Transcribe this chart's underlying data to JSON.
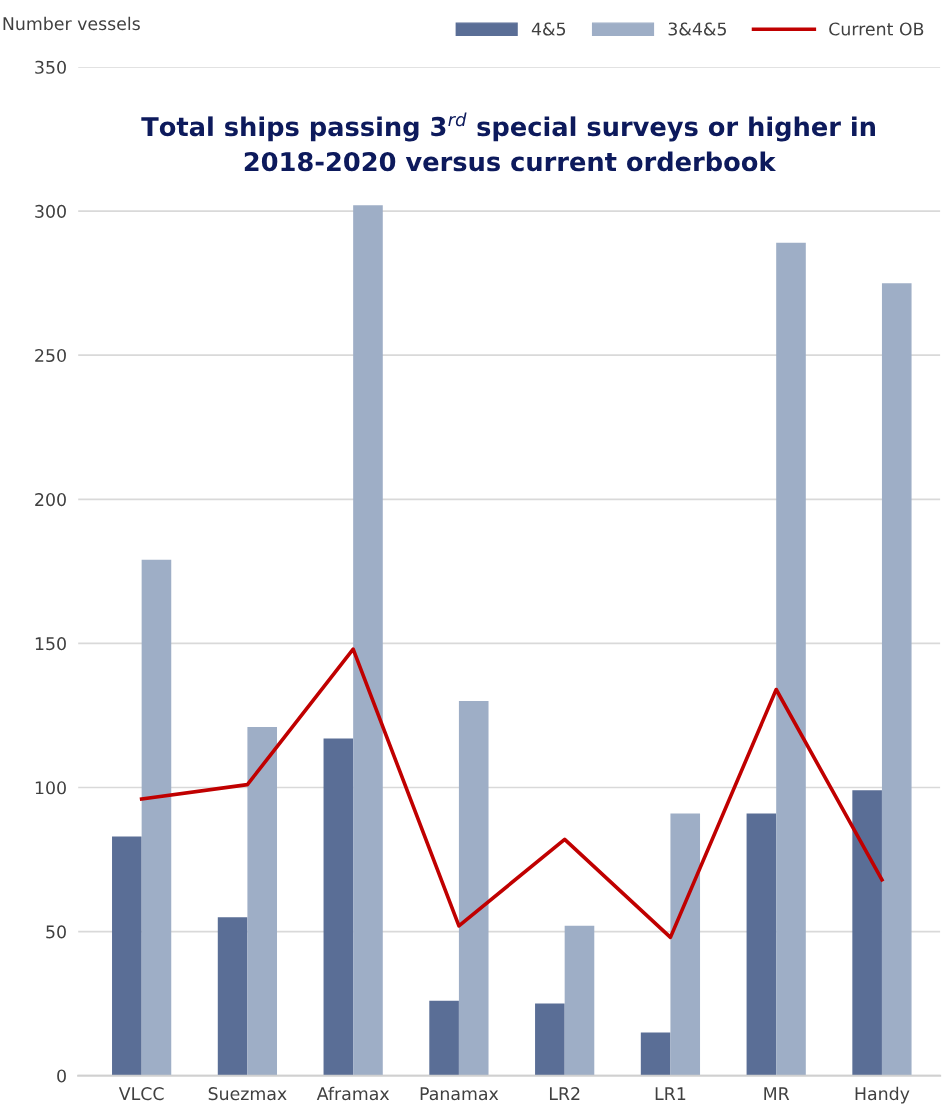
{
  "chart_data": {
    "type": "bar",
    "title": "Total ships passing 3$^{rd}$ special surveys or higher in 2018-2020 versus current orderbook",
    "ylabel": "Number vessels",
    "categories": [
      "VLCC",
      "Suezmax",
      "Aframax",
      "Panamax",
      "LR2",
      "LR1",
      "MR",
      "Handy"
    ],
    "series": [
      {
        "name": "4&5",
        "color": "#5a6e96",
        "values": [
          83,
          55,
          117,
          26,
          25,
          15,
          91,
          99
        ]
      },
      {
        "name": "3&4&5",
        "color": "#9eaec6",
        "values": [
          179,
          121,
          302,
          130,
          52,
          91,
          289,
          275
        ]
      },
      {
        "name": "Current OB",
        "type": "line",
        "color": "#c00000",
        "values": [
          96,
          101,
          148,
          52,
          82,
          48,
          134,
          68
        ]
      }
    ],
    "ylim": [
      0,
      350
    ],
    "yticks": [
      0,
      50,
      100,
      150,
      200,
      250,
      300,
      350
    ],
    "grid": "y",
    "legend": "top right",
    "marker": "none",
    "line_style": "solid"
  }
}
